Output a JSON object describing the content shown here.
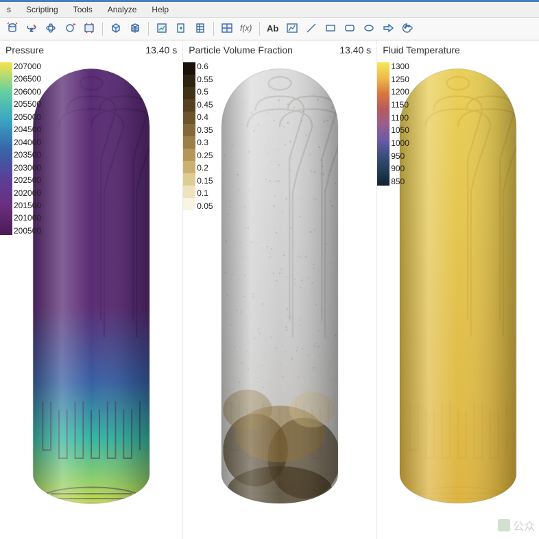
{
  "menu": {
    "items": [
      "s",
      "Scripting",
      "Tools",
      "Analyze",
      "Help"
    ]
  },
  "toolbar": {
    "icons": [
      "cylinder-z",
      "rotate-z",
      "rotate-xy",
      "spin",
      "fit",
      "sep",
      "cube-snap",
      "mesh",
      "sep",
      "chart",
      "doc-add",
      "doc-grid",
      "sep",
      "window-split",
      "fx",
      "sep",
      "text-ab",
      "line-chart",
      "diag-line",
      "rect",
      "rect-round",
      "ellipse",
      "arrow-shape",
      "palette"
    ]
  },
  "panels": [
    {
      "title": "Pressure",
      "time": "13.40 s",
      "legend_type": "continuous",
      "gradient": [
        "#f8e34a",
        "#66cfa2",
        "#3aa6c2",
        "#3766a8",
        "#5b3f97",
        "#6a2f7e",
        "#4a1b56"
      ],
      "labels": [
        "207000",
        "206500",
        "206000",
        "205500",
        "205000",
        "204500",
        "204000",
        "203500",
        "203000",
        "202500",
        "202000",
        "201500",
        "201000",
        "200500"
      ],
      "fill_top": "#5a2c74",
      "fill_mid": "#3860a4",
      "fill_low": "#35b5a0",
      "fill_bottom": "#c1da4c",
      "internal": "#472360"
    },
    {
      "title": "Particle Volume Fraction",
      "time": "13.40 s",
      "legend_type": "discrete",
      "steps": [
        "#1a1208",
        "#2e2210",
        "#40311a",
        "#564223",
        "#6c542e",
        "#83693a",
        "#9a7f48",
        "#b39859",
        "#c9b271",
        "#ddcc94",
        "#eee2bf",
        "#faf4e4"
      ],
      "labels": [
        "0.6",
        "0.55",
        "0.5",
        "0.45",
        "0.4",
        "0.35",
        "0.3",
        "0.25",
        "0.2",
        "0.15",
        "0.1",
        "0.05"
      ],
      "body_color": "#c8c6c2",
      "internal": "#aeadaa",
      "splash_dark": "#3a2c12",
      "splash_mid": "#8a6c32",
      "splash_light": "#cfb882"
    },
    {
      "title": "Fluid Temperature",
      "time": "",
      "legend_type": "continuous",
      "gradient": [
        "#f6e65a",
        "#eeb94a",
        "#d77a3f",
        "#b85a5e",
        "#9a5e8c",
        "#6a5aa8",
        "#3b5080",
        "#233a55",
        "#14222f"
      ],
      "labels": [
        "1300",
        "1250",
        "1200",
        "1150",
        "1100",
        "1050",
        "1000",
        "950",
        "900",
        "850"
      ],
      "fill_top": "#e9cf57",
      "fill_mid": "#e3c44f",
      "fill_low": "#e0bc48",
      "fill_bottom": "#ddb441",
      "internal": "#cfa93d"
    }
  ]
}
